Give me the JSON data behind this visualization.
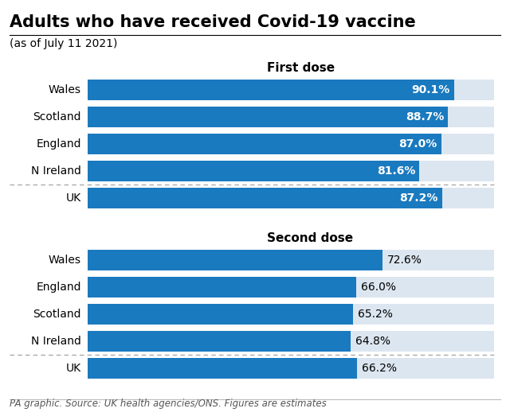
{
  "title": "Adults who have received Covid-19 vaccine",
  "subtitle": "(as of July 11 2021)",
  "footnote": "PA graphic. Source: UK health agencies/ONS. Figures are estimates",
  "first_dose": {
    "label": "First dose",
    "categories": [
      "Wales",
      "Scotland",
      "England",
      "N Ireland",
      "UK"
    ],
    "values": [
      90.1,
      88.7,
      87.0,
      81.6,
      87.2
    ],
    "labels": [
      "90.1%",
      "88.7%",
      "87.0%",
      "81.6%",
      "87.2%"
    ]
  },
  "second_dose": {
    "label": "Second dose",
    "categories": [
      "Wales",
      "England",
      "Scotland",
      "N Ireland",
      "UK"
    ],
    "values": [
      72.6,
      66.0,
      65.2,
      64.8,
      66.2
    ],
    "labels": [
      "72.6%",
      "66.0%",
      "65.2%",
      "64.8%",
      "66.2%"
    ]
  },
  "bar_color": "#1a7abf",
  "bg_color": "#ffffff",
  "bar_bg_color": "#dce6f0",
  "title_underline_color": "#000000",
  "separator_color": "#aaaaaa",
  "max_value": 100,
  "title_fontsize": 15,
  "subtitle_fontsize": 10,
  "label_fontsize": 10,
  "section_fontsize": 11,
  "footnote_fontsize": 8.5
}
